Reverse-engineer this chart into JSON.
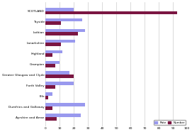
{
  "categories": [
    "SCOTLAND",
    "Tayside",
    "Lothian",
    "Lanarkshire",
    "Highland",
    "Grampian",
    "Greater Glasgow and Clyde",
    "Forth Valley",
    "Fife",
    "Dumfries and Galloway",
    "Ayrshire and Arran"
  ],
  "rate": [
    20,
    26,
    28,
    21,
    12,
    10,
    17,
    20,
    5,
    28,
    25
  ],
  "number": [
    93,
    11,
    23,
    11,
    5,
    7,
    20,
    7,
    2,
    5,
    8
  ],
  "rate_color": "#9999ee",
  "number_color": "#7b1642",
  "xlim": [
    0,
    100
  ],
  "xticks": [
    0,
    10,
    20,
    30,
    40,
    50,
    60,
    70,
    80,
    90,
    100
  ],
  "bar_height": 0.32,
  "background_color": "#ffffff",
  "grid_color": "#cccccc",
  "legend_rate_label": "Rate",
  "legend_number_label": "Number"
}
